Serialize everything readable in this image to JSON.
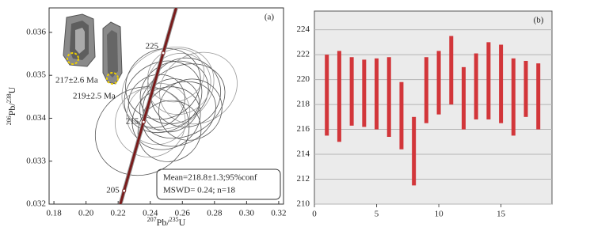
{
  "chart_data": [
    {
      "type": "concordia",
      "panel_label": "(a)",
      "x_label": {
        "sup1": "207",
        "main1": "Pb/",
        "sup2": "235",
        "main2": "U"
      },
      "y_label": {
        "sup1": "206",
        "main1": "Pb/",
        "sup2": "238",
        "main2": "U"
      },
      "xlim": [
        0.177,
        0.323
      ],
      "ylim": [
        0.032,
        0.03657
      ],
      "xticks": [
        0.18,
        {
          "value": 0.2,
          "label": "0.20"
        },
        0.22,
        0.24,
        0.26,
        0.28,
        {
          "value": 0.3,
          "label": "0.30"
        },
        0.32
      ],
      "yticks": [
        0.032,
        0.033,
        0.034,
        0.035,
        0.036
      ],
      "concordia_ages": [
        205,
        215,
        225
      ],
      "ellipses": {
        "x": [
          0.251,
          0.255,
          0.248,
          0.258,
          0.262,
          0.253,
          0.245,
          0.235,
          0.26,
          0.27,
          0.25,
          0.244,
          0.256,
          0.265,
          0.248,
          0.24,
          0.252,
          0.258
        ],
        "y": [
          0.0347,
          0.0346,
          0.0345,
          0.0348,
          0.0346,
          0.0343,
          0.0341,
          0.0337,
          0.0344,
          0.0347,
          0.034,
          0.0344,
          0.035,
          0.0342,
          0.0348,
          0.0339,
          0.0337,
          0.0341
        ],
        "x_err": [
          0.03,
          0.022,
          0.025,
          0.02,
          0.022,
          0.018,
          0.02,
          0.03,
          0.028,
          0.025,
          0.022,
          0.018,
          0.018,
          0.02,
          0.024,
          0.022,
          0.02,
          0.024
        ],
        "y_err": [
          0.0009,
          0.0007,
          0.0008,
          0.0007,
          0.0008,
          0.0006,
          0.0007,
          0.001,
          0.0008,
          0.0008,
          0.0007,
          0.0006,
          0.0006,
          0.0007,
          0.0008,
          0.0008,
          0.0007,
          0.0007
        ]
      },
      "crystal_labels": [
        "217±2.6 Ma",
        "219±2.5 Ma"
      ],
      "annotation": [
        "Mean=218.8±1.3;95%conf",
        "MSWD= 0.24; n=18"
      ]
    },
    {
      "type": "floating_bar",
      "panel_label": "(b)",
      "color": "#d2363a",
      "x": [
        1,
        2,
        3,
        4,
        5,
        6,
        7,
        8,
        9,
        10,
        11,
        12,
        13,
        14,
        15,
        16,
        17,
        18
      ],
      "low": [
        215.5,
        215.0,
        216.3,
        216.2,
        216.0,
        215.4,
        214.4,
        211.5,
        216.5,
        217.2,
        218.0,
        216.0,
        216.8,
        216.8,
        216.5,
        215.5,
        217.0,
        216.0
      ],
      "high": [
        222.0,
        222.3,
        221.8,
        221.6,
        221.7,
        221.8,
        219.8,
        217.0,
        221.8,
        222.3,
        223.5,
        221.0,
        222.1,
        223.0,
        222.8,
        221.7,
        221.5,
        221.3
      ],
      "xlim": [
        0,
        19.1
      ],
      "ylim": [
        210,
        225.5
      ],
      "xticks": [
        0,
        5,
        10,
        15
      ],
      "yticks": [
        210,
        212,
        214,
        216,
        218,
        220,
        222,
        224
      ],
      "grid": true
    }
  ]
}
